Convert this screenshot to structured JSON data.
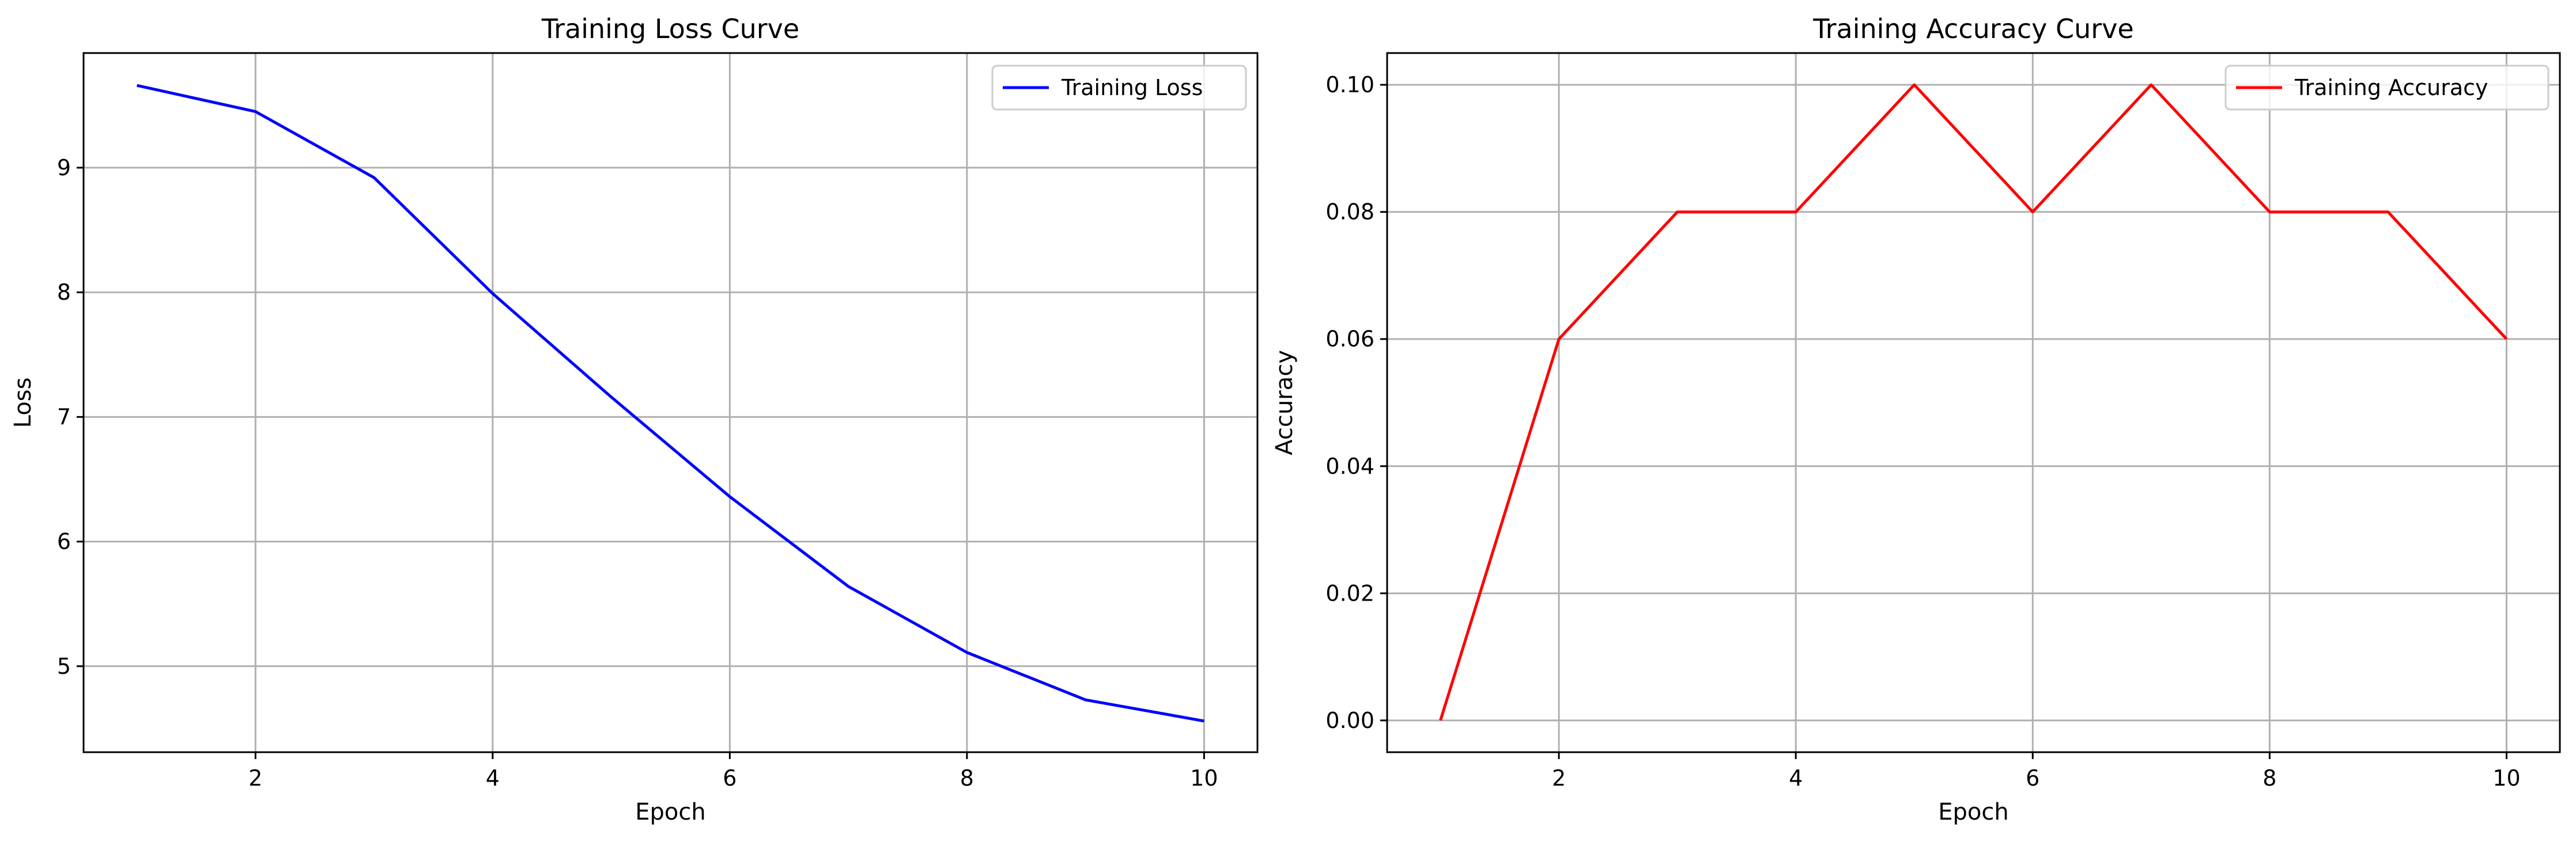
{
  "chart_data": [
    {
      "type": "line",
      "title": "Training Loss Curve",
      "xlabel": "Epoch",
      "ylabel": "Loss",
      "xlim": [
        0.55,
        10.45
      ],
      "ylim": [
        4.31,
        9.92
      ],
      "xticks": [
        2,
        4,
        6,
        8,
        10
      ],
      "yticks": [
        5,
        6,
        7,
        8,
        9
      ],
      "grid": true,
      "legend_position": "top-right",
      "x": [
        1,
        2,
        3,
        4,
        5,
        6,
        7,
        8,
        9,
        10
      ],
      "series": [
        {
          "name": "Training Loss",
          "color": "#0000ff",
          "values": [
            9.66,
            9.45,
            8.92,
            7.99,
            7.16,
            6.36,
            5.64,
            5.11,
            4.73,
            4.56
          ]
        }
      ]
    },
    {
      "type": "line",
      "title": "Training Accuracy Curve",
      "xlabel": "Epoch",
      "ylabel": "Accuracy",
      "xlim": [
        0.55,
        10.45
      ],
      "ylim": [
        -0.005,
        0.105
      ],
      "xticks": [
        2,
        4,
        6,
        8,
        10
      ],
      "yticks": [
        0.0,
        0.02,
        0.04,
        0.06,
        0.08,
        0.1
      ],
      "ytick_labels": [
        "0.00",
        "0.02",
        "0.04",
        "0.06",
        "0.08",
        "0.10"
      ],
      "grid": true,
      "legend_position": "top-right",
      "x": [
        1,
        2,
        3,
        4,
        5,
        6,
        7,
        8,
        9,
        10
      ],
      "series": [
        {
          "name": "Training Accuracy",
          "color": "#ff0000",
          "values": [
            0.0,
            0.06,
            0.08,
            0.08,
            0.1,
            0.08,
            0.1,
            0.08,
            0.08,
            0.06
          ]
        }
      ]
    }
  ]
}
